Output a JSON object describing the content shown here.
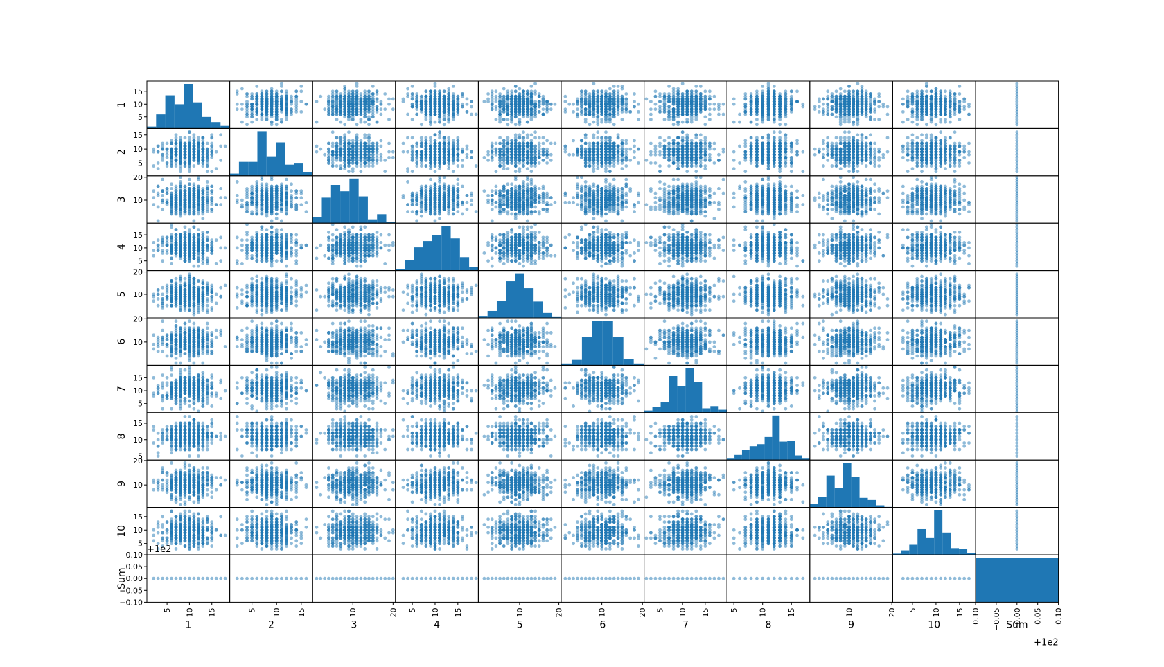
{
  "chart_data": {
    "type": "scatter",
    "subtype": "scatter_matrix",
    "variables": [
      "1",
      "2",
      "3",
      "4",
      "5",
      "6",
      "7",
      "8",
      "9",
      "10",
      "Sum"
    ],
    "diagonal": "histogram",
    "color": "#1f77b4",
    "point_alpha": 0.5,
    "grid": false,
    "legend": "none",
    "x_tick_labels": {
      "1": [
        "5",
        "10",
        "15"
      ],
      "2": [
        "5",
        "10",
        "15"
      ],
      "3": [
        "10",
        "20"
      ],
      "4": [
        "5",
        "10",
        "15"
      ],
      "5": [
        "10",
        "20"
      ],
      "6": [
        "10",
        "20"
      ],
      "7": [
        "5",
        "10",
        "15"
      ],
      "8": [
        "5",
        "10",
        "15"
      ],
      "9": [
        "10",
        "20"
      ],
      "10": [
        "5",
        "10",
        "15"
      ],
      "Sum": [
        "−0.10",
        "−0.05",
        "0.00",
        "0.05",
        "0.10"
      ]
    },
    "y_tick_labels": {
      "1": [
        "5",
        "10",
        "15"
      ],
      "2": [
        "5",
        "10",
        "15"
      ],
      "3": [
        "10",
        "20"
      ],
      "4": [
        "5",
        "10",
        "15"
      ],
      "5": [
        "10",
        "20"
      ],
      "6": [
        "10",
        "20"
      ],
      "7": [
        "5",
        "10",
        "15"
      ],
      "8": [
        "5",
        "10",
        "15"
      ],
      "9": [
        "10",
        "20"
      ],
      "10": [
        "5",
        "10",
        "15"
      ],
      "Sum": [
        "−0.10",
        "−0.05",
        "0.00",
        "0.05",
        "0.10"
      ]
    },
    "sum_offset_label": "+1e2",
    "axis_ranges": {
      "1": [
        0.5,
        19
      ],
      "2": [
        0.5,
        17.3
      ],
      "3": [
        0,
        20.6
      ],
      "4": [
        1.3,
        19.5
      ],
      "5": [
        -0.5,
        20.6
      ],
      "6": [
        0,
        20.4
      ],
      "7": [
        1.5,
        19.8
      ],
      "8": [
        3.8,
        18.2
      ],
      "9": [
        0.8,
        20.2
      ],
      "10": [
        0.8,
        18.4
      ],
      "Sum": [
        -0.1,
        0.1
      ]
    },
    "histograms": {
      "1": [
        3,
        22,
        52,
        38,
        70,
        41,
        18,
        10,
        4
      ],
      "2": [
        4,
        25,
        25,
        80,
        35,
        60,
        20,
        22,
        6
      ],
      "3": [
        10,
        40,
        60,
        50,
        70,
        42,
        6,
        14,
        2
      ],
      "4": [
        4,
        24,
        52,
        66,
        80,
        100,
        72,
        30,
        8
      ],
      "5": [
        4,
        14,
        34,
        74,
        90,
        60,
        33,
        10,
        3
      ],
      "6": [
        4,
        12,
        64,
        100,
        100,
        64,
        14,
        4
      ],
      "7": [
        6,
        16,
        28,
        100,
        72,
        122,
        84,
        12,
        18,
        8
      ],
      "8": [
        4,
        10,
        20,
        27,
        31,
        45,
        87,
        36,
        37,
        9,
        4
      ],
      "9": [
        6,
        20,
        60,
        36,
        84,
        58,
        18,
        14,
        4,
        1
      ],
      "10": [
        2,
        8,
        18,
        46,
        30,
        80,
        40,
        12,
        10,
        3
      ],
      "Sum": [
        1
      ]
    },
    "sum_value": 100,
    "n_points": 500
  }
}
